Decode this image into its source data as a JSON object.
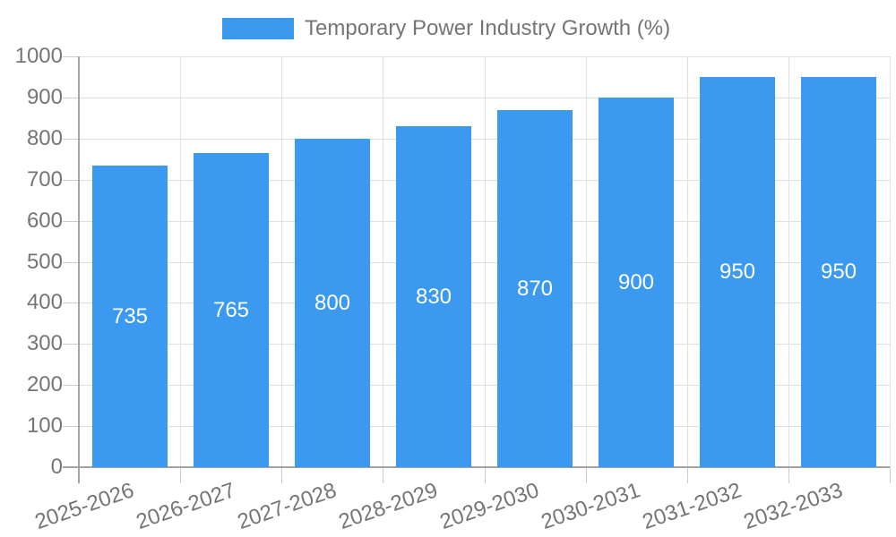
{
  "legend": {
    "label": "Temporary Power Industry Growth (%)"
  },
  "colors": {
    "bar": "#3b9aef",
    "axis": "#a3a3a3",
    "grid": "#e0e0e0",
    "tick": "#cccccc",
    "text": "#757575",
    "value_label": "#ffffff",
    "background": "#ffffff"
  },
  "chart_data": {
    "type": "bar",
    "title": "Temporary Power Industry Growth (%)",
    "categories": [
      "2025-2026",
      "2026-2027",
      "2027-2028",
      "2028-2029",
      "2029-2030",
      "2030-2031",
      "2031-2032",
      "2032-2033"
    ],
    "values": [
      735,
      765,
      800,
      830,
      870,
      900,
      950,
      950
    ],
    "xlabel": "",
    "ylabel": "",
    "ylim": [
      0,
      1000
    ],
    "yticks": [
      0,
      100,
      200,
      300,
      400,
      500,
      600,
      700,
      800,
      900,
      1000
    ],
    "grid": true,
    "legend_position": "top",
    "value_label_position": "inside-center",
    "x_tick_rotation_deg": -19
  }
}
